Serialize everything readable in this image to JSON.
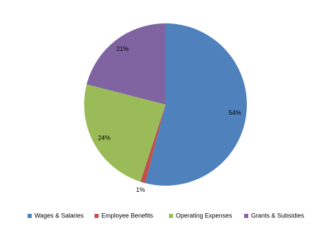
{
  "chart_data": {
    "type": "pie",
    "categories": [
      "Wages & Salaries",
      "Employee Benefits",
      "Operating Expenses",
      "Grants & Subsidies"
    ],
    "values": [
      54,
      1,
      24,
      21
    ],
    "value_labels": [
      "54%",
      "1%",
      "24%",
      "21%"
    ],
    "colors": [
      "#4f81bd",
      "#c0504d",
      "#9bbb59",
      "#8064a2"
    ],
    "legend": "bottom"
  }
}
